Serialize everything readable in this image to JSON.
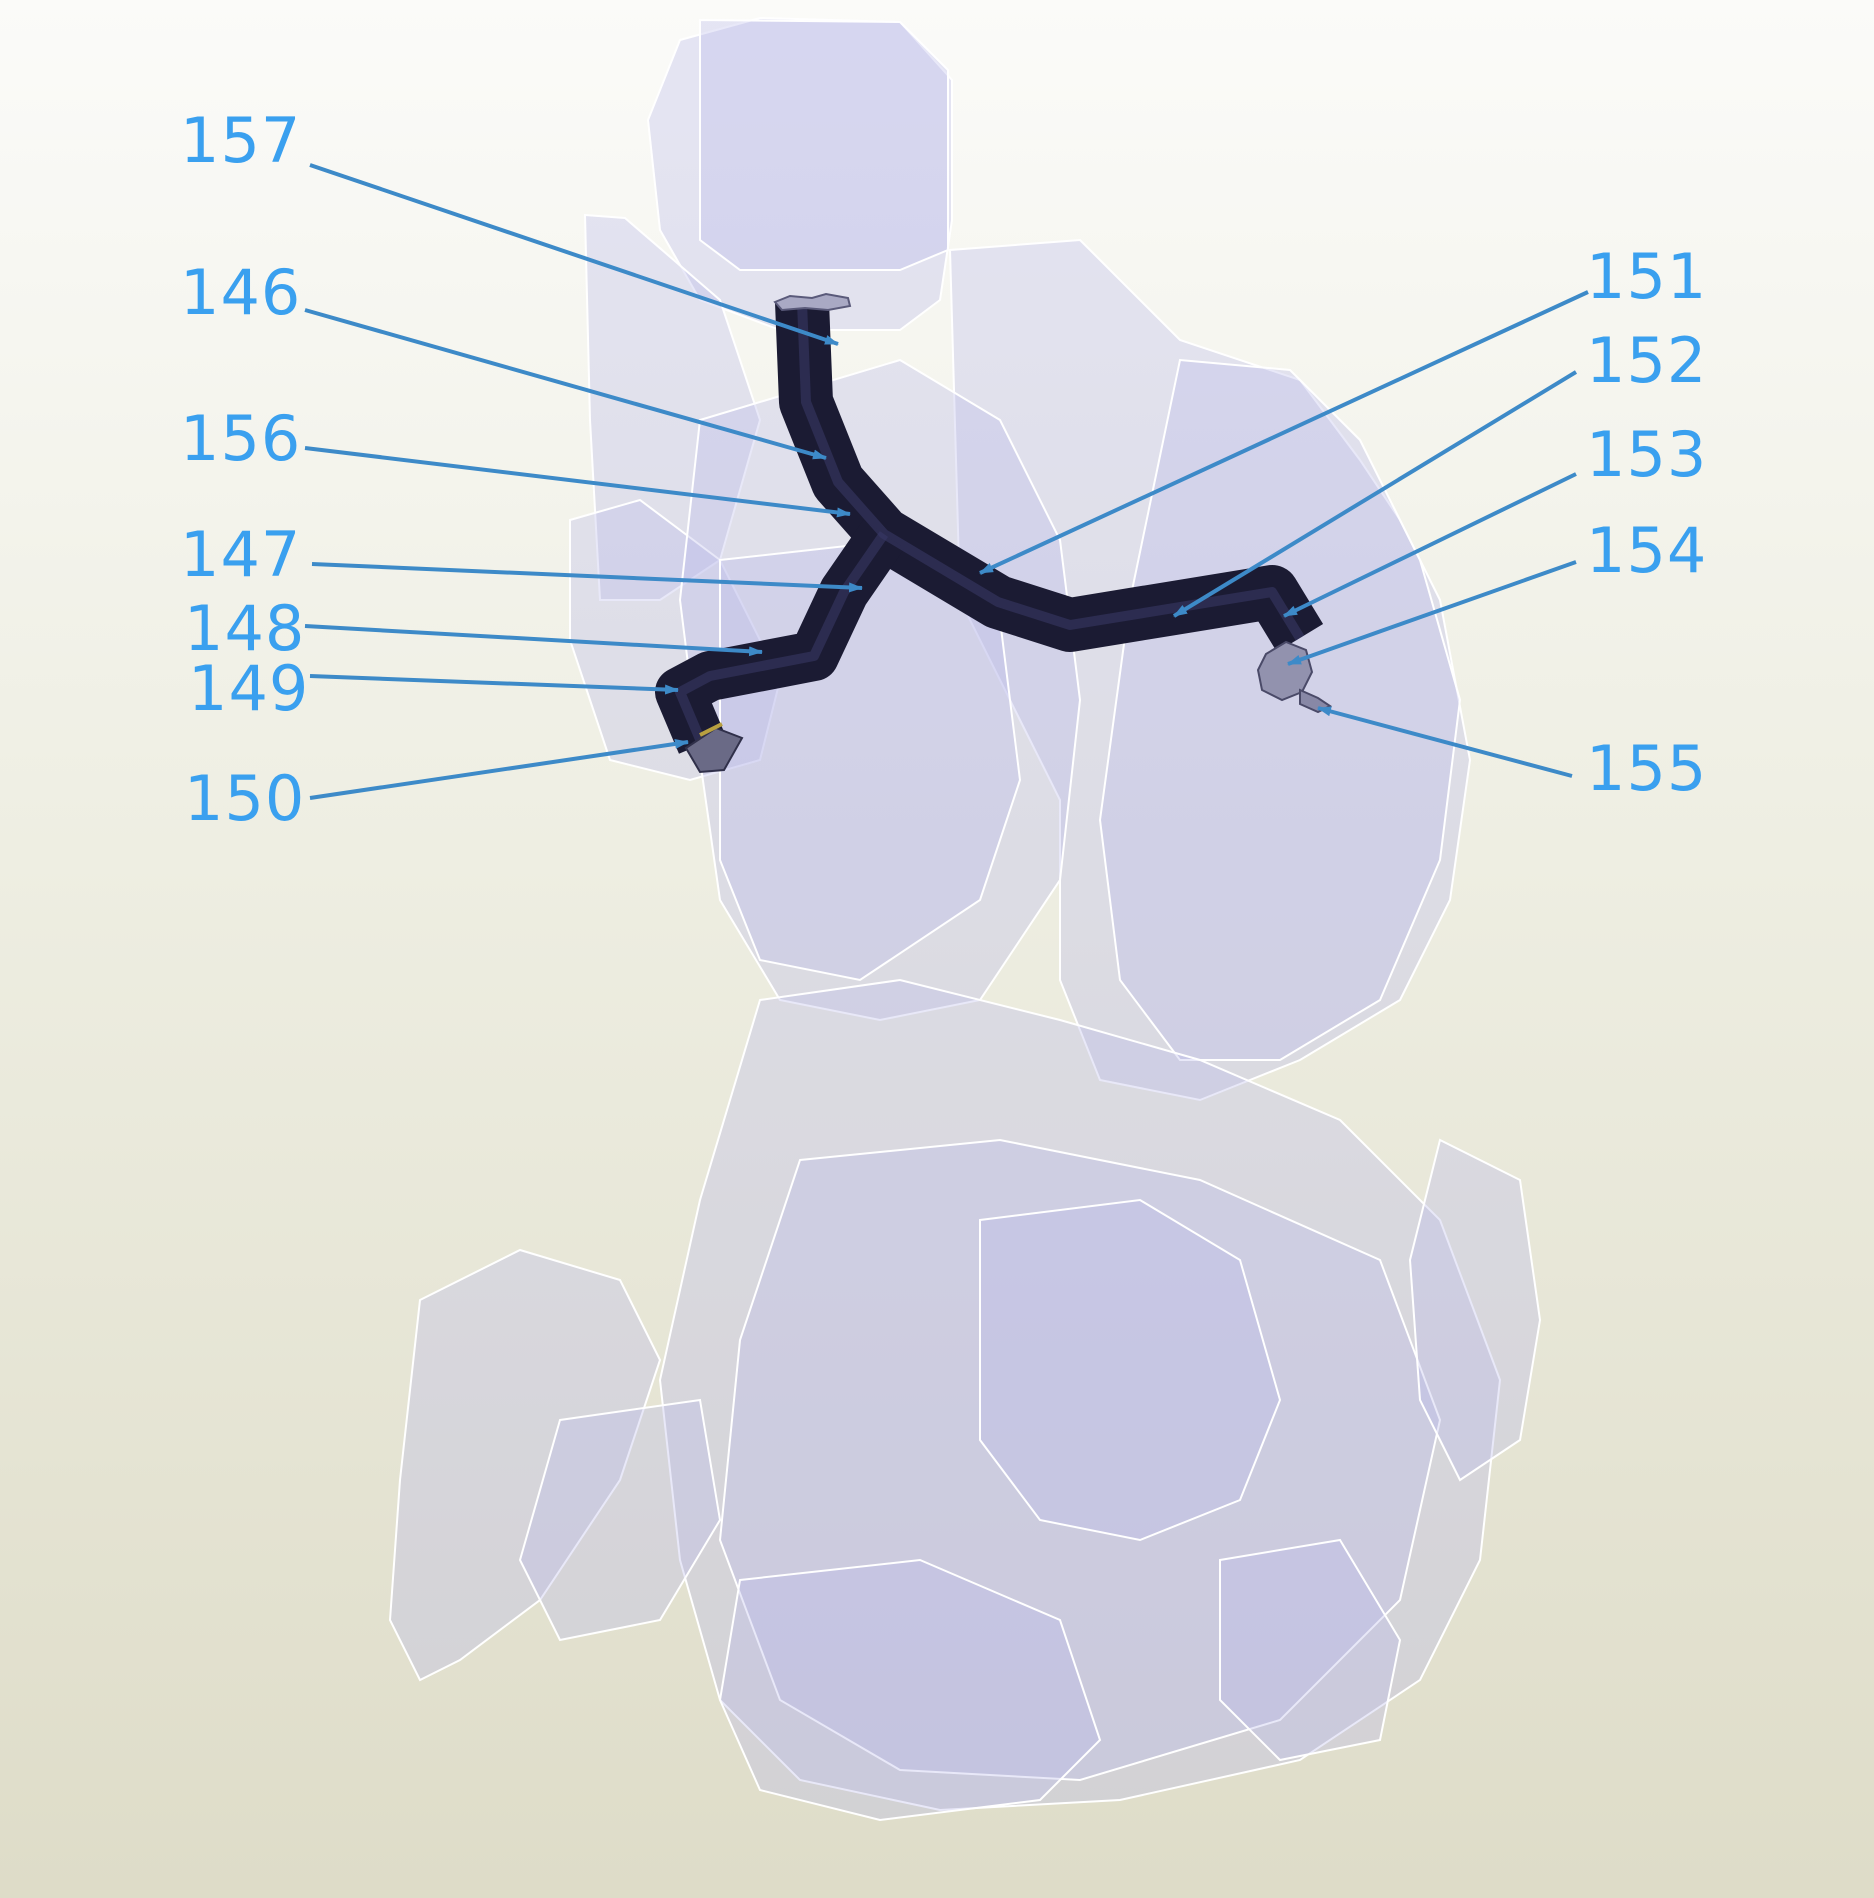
{
  "callouts": [
    {
      "id": "157",
      "text": "157"
    },
    {
      "id": "146",
      "text": "146"
    },
    {
      "id": "156",
      "text": "156"
    },
    {
      "id": "147",
      "text": "147"
    },
    {
      "id": "148",
      "text": "148"
    },
    {
      "id": "149",
      "text": "149"
    },
    {
      "id": "150",
      "text": "150"
    },
    {
      "id": "151",
      "text": "151"
    },
    {
      "id": "152",
      "text": "152"
    },
    {
      "id": "153",
      "text": "153"
    },
    {
      "id": "154",
      "text": "154"
    },
    {
      "id": "155",
      "text": "155"
    }
  ],
  "colors": {
    "background": "#f4f4ee",
    "ghost_assembly": "#c8c8ea",
    "duct": "#1b1b33",
    "callout": "#3aa0ef",
    "leader": "#3d8ac8"
  }
}
